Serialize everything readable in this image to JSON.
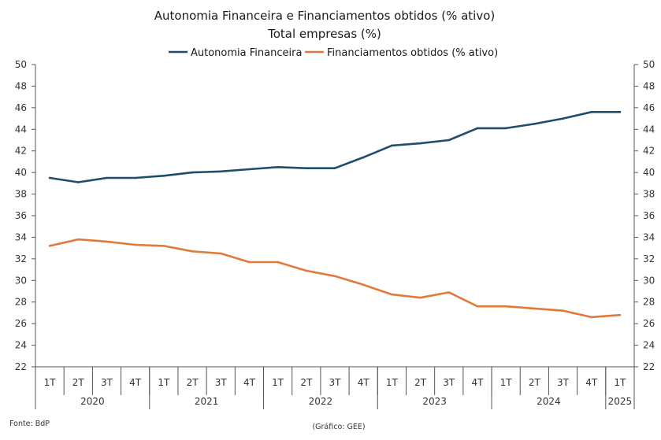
{
  "chart_data": {
    "type": "line",
    "title": "Autonomia Financeira e Financiamentos obtidos (% ativo)",
    "subtitle": "Total empresas (%)",
    "categories": [
      "1T",
      "2T",
      "3T",
      "4T",
      "1T",
      "2T",
      "3T",
      "4T",
      "1T",
      "2T",
      "3T",
      "4T",
      "1T",
      "2T",
      "3T",
      "4T",
      "1T",
      "2T",
      "3T",
      "4T",
      "1T"
    ],
    "years": [
      {
        "label": "2020",
        "span": 4
      },
      {
        "label": "2021",
        "span": 4
      },
      {
        "label": "2022",
        "span": 4
      },
      {
        "label": "2023",
        "span": 4
      },
      {
        "label": "2024",
        "span": 4
      },
      {
        "label": "2025",
        "span": 1
      }
    ],
    "series": [
      {
        "name": "Autonomia Financeira",
        "color": "#1f4e6b",
        "values": [
          39.5,
          39.1,
          39.5,
          39.5,
          39.7,
          40.0,
          40.1,
          40.3,
          40.5,
          40.4,
          40.4,
          41.4,
          42.5,
          42.7,
          43.0,
          44.1,
          44.1,
          44.5,
          45.0,
          45.6,
          45.6
        ]
      },
      {
        "name": "Financiamentos obtidos (% ativo)",
        "color": "#e07a3a",
        "values": [
          33.2,
          33.8,
          33.6,
          33.3,
          33.2,
          32.7,
          32.5,
          31.7,
          31.7,
          30.9,
          30.4,
          29.6,
          28.7,
          28.4,
          28.9,
          27.6,
          27.6,
          27.4,
          27.2,
          26.6,
          26.8
        ]
      }
    ],
    "ylim": [
      22,
      50
    ],
    "yticks": [
      22,
      24,
      26,
      28,
      30,
      32,
      34,
      36,
      38,
      40,
      42,
      44,
      46,
      48,
      50
    ],
    "xlabel": "",
    "ylabel": "",
    "legend": "top-center",
    "grid": false
  },
  "footer": {
    "source": "Fonte: BdP",
    "credit": "(Gráfico: GEE)"
  }
}
